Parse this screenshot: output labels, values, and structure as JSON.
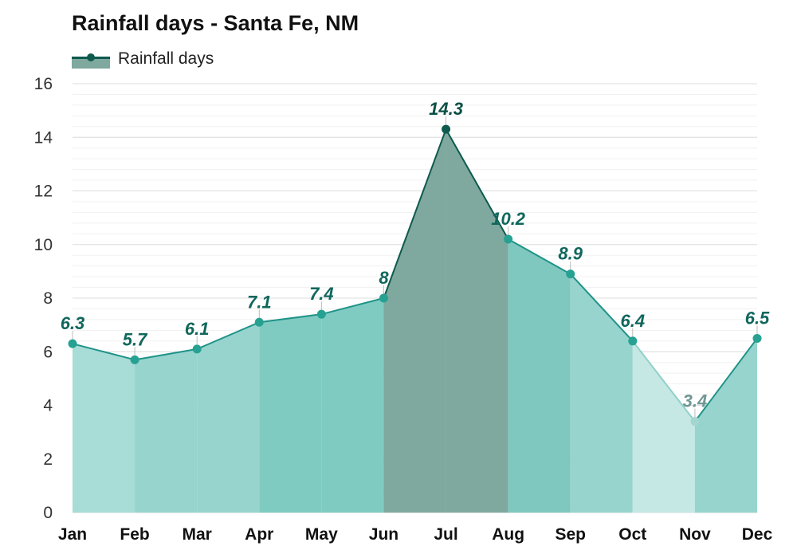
{
  "title": "Rainfall days - Santa Fe, NM",
  "legend": {
    "label": "Rainfall days"
  },
  "colors": {
    "dark_line": "#0e5a4e",
    "line": "#1f9388",
    "label": "#10675c",
    "grid": "#dddddd"
  },
  "chart_data": {
    "type": "area",
    "title": "Rainfall days - Santa Fe, NM",
    "xlabel": "",
    "ylabel": "",
    "ylim": [
      0,
      16
    ],
    "yticks": [
      0,
      2,
      4,
      6,
      8,
      10,
      12,
      14,
      16
    ],
    "categories": [
      "Jan",
      "Feb",
      "Mar",
      "Apr",
      "May",
      "Jun",
      "Jul",
      "Aug",
      "Sep",
      "Oct",
      "Nov",
      "Dec"
    ],
    "series": [
      {
        "name": "Rainfall days",
        "values": [
          6.3,
          5.7,
          6.1,
          7.1,
          7.4,
          8,
          14.3,
          10.2,
          8.9,
          6.4,
          3.4,
          6.5
        ],
        "labels": [
          "6.3",
          "5.7",
          "6.1",
          "7.1",
          "7.4",
          "8",
          "14.3",
          "10.2",
          "8.9",
          "6.4",
          "3.4",
          "6.5"
        ]
      }
    ],
    "segment_colors": [
      "#a8dcd6",
      "#96d4cd",
      "#96d4cd",
      "#7fcbc2",
      "#7fcbc2",
      "#7fa89e",
      "#7fa89e",
      "#7fc8bf",
      "#96d4cd",
      "#c5e8e4",
      "#96d4cd"
    ],
    "grid": true,
    "legend_position": "top-left"
  }
}
